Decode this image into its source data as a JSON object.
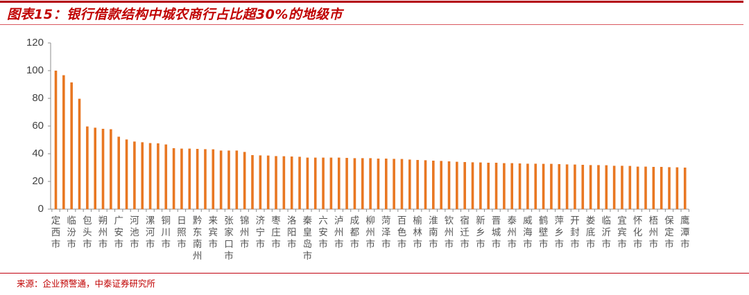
{
  "header": {
    "title": "图表15：银行借款结构中城农商行占比超30%的地级市"
  },
  "footer": {
    "source": "来源：企业预警通，中泰证券研究所"
  },
  "colors": {
    "bar": "#E87722",
    "title": "#C00000",
    "rule": "#B3000E",
    "axis": "#8C8C8C"
  },
  "chart_data": {
    "type": "bar",
    "title": "图表15：银行借款结构中城农商行占比超30%的地级市",
    "xlabel": "",
    "ylabel": "",
    "ylim": [
      0,
      120
    ],
    "yticks": [
      0,
      20,
      40,
      60,
      80,
      100,
      120
    ],
    "grid": false,
    "legend": null,
    "labeled_every": 2,
    "visible_labels": [
      "定西市",
      "临汾市",
      "包头市",
      "朔州市",
      "广安市",
      "河池市",
      "漯河市",
      "铜川市",
      "日照市",
      "黔东南州",
      "来宾市",
      "张家口市",
      "锦州市",
      "济宁市",
      "枣庄市",
      "洛阳市",
      "秦皇岛市",
      "六安市",
      "泸州市",
      "成都市",
      "柳州市",
      "菏泽市",
      "百色市",
      "榆林市",
      "淮南市",
      "钦州市",
      "宿迁市",
      "新乡市",
      "晋城市",
      "泰州市",
      "威海市",
      "鹤壁市",
      "萍乡市",
      "开封市",
      "娄底市",
      "临沂市",
      "宜宾市",
      "怀化市",
      "梧州市",
      "保定市",
      "鹰潭市"
    ],
    "categories": [
      "定西市",
      "",
      "临汾市",
      "",
      "包头市",
      "",
      "朔州市",
      "",
      "广安市",
      "",
      "河池市",
      "",
      "漯河市",
      "",
      "铜川市",
      "",
      "日照市",
      "",
      "黔东南州",
      "",
      "来宾市",
      "",
      "张家口市",
      "",
      "锦州市",
      "",
      "济宁市",
      "",
      "枣庄市",
      "",
      "洛阳市",
      "",
      "秦皇岛市",
      "",
      "六安市",
      "",
      "泸州市",
      "",
      "成都市",
      "",
      "柳州市",
      "",
      "菏泽市",
      "",
      "百色市",
      "",
      "榆林市",
      "",
      "淮南市",
      "",
      "钦州市",
      "",
      "宿迁市",
      "",
      "新乡市",
      "",
      "晋城市",
      "",
      "泰州市",
      "",
      "威海市",
      "",
      "鹤壁市",
      "",
      "萍乡市",
      "",
      "开封市",
      "",
      "娄底市",
      "",
      "临沂市",
      "",
      "宜宾市",
      "",
      "怀化市",
      "",
      "梧州市",
      "",
      "保定市",
      "",
      "鹰潭市"
    ],
    "values": [
      100,
      96.7,
      91.5,
      79.7,
      59.7,
      58.8,
      58.0,
      57.7,
      52.3,
      50.3,
      48.8,
      48.3,
      47.7,
      47.5,
      46.7,
      44.0,
      43.7,
      43.7,
      43.5,
      43.3,
      43.2,
      42.3,
      42.3,
      42.3,
      41.3,
      39.0,
      38.8,
      38.7,
      38.3,
      38.2,
      38.0,
      37.8,
      37.2,
      37.2,
      37.2,
      37.2,
      37.2,
      37.0,
      36.8,
      36.8,
      36.8,
      36.5,
      36.5,
      36.3,
      36.2,
      35.8,
      35.5,
      35.3,
      35.0,
      34.8,
      34.5,
      34.2,
      34.0,
      33.8,
      33.7,
      33.5,
      33.5,
      33.2,
      33.2,
      33.0,
      32.8,
      32.8,
      32.7,
      32.7,
      32.5,
      32.3,
      32.2,
      32.0,
      31.8,
      31.8,
      31.7,
      31.3,
      31.3,
      31.2,
      30.7,
      30.7,
      30.5,
      30.5,
      30.3,
      30.2,
      30.0
    ]
  }
}
